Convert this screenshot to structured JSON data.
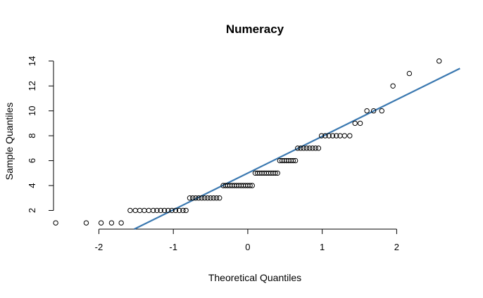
{
  "chart_data": {
    "type": "scatter",
    "title": "Numeracy",
    "xlabel": "Theoretical Quantiles",
    "ylabel": "Sample Quantiles",
    "xlim": [
      -2.6,
      2.8
    ],
    "ylim": [
      0.5,
      14.5
    ],
    "xticks": [
      -2,
      -1,
      0,
      1,
      2
    ],
    "xtick_labels": [
      "-2",
      "-1",
      "0",
      "1",
      "2"
    ],
    "yticks": [
      2,
      4,
      6,
      8,
      10,
      12,
      14
    ],
    "ytick_labels": [
      "2",
      "4",
      "6",
      "8",
      "10",
      "12",
      "14"
    ],
    "grid": false,
    "ref_line": {
      "intercept": 5.0,
      "slope": 2.95,
      "color": "#3a78b0"
    },
    "points": [
      {
        "y": 1,
        "x": [
          -2.58,
          -2.17,
          -1.97,
          -1.83,
          -1.7
        ]
      },
      {
        "y": 2,
        "x": [
          -1.58,
          -1.51,
          -1.45,
          -1.39,
          -1.33,
          -1.27,
          -1.22,
          -1.17,
          -1.12,
          -1.07,
          -1.02,
          -0.97,
          -0.92,
          -0.87,
          -0.83
        ]
      },
      {
        "y": 3,
        "x": [
          -0.78,
          -0.74,
          -0.7,
          -0.66,
          -0.62,
          -0.58,
          -0.54,
          -0.5,
          -0.46,
          -0.42,
          -0.38
        ]
      },
      {
        "y": 4,
        "x": [
          -0.33,
          -0.3,
          -0.27,
          -0.24,
          -0.21,
          -0.18,
          -0.15,
          -0.12,
          -0.09,
          -0.06,
          -0.03,
          0.0,
          0.03,
          0.06
        ]
      },
      {
        "y": 5,
        "x": [
          0.1,
          0.13,
          0.16,
          0.19,
          0.22,
          0.25,
          0.28,
          0.31,
          0.34,
          0.37,
          0.4
        ]
      },
      {
        "y": 6,
        "x": [
          0.43,
          0.46,
          0.49,
          0.52,
          0.55,
          0.58,
          0.61,
          0.64
        ]
      },
      {
        "y": 7,
        "x": [
          0.67,
          0.71,
          0.75,
          0.79,
          0.83,
          0.87,
          0.91,
          0.95
        ]
      },
      {
        "y": 8,
        "x": [
          0.99,
          1.04,
          1.09,
          1.14,
          1.19,
          1.24,
          1.3,
          1.37
        ]
      },
      {
        "y": 9,
        "x": [
          1.44,
          1.51
        ]
      },
      {
        "y": 10,
        "x": [
          1.6,
          1.69,
          1.8
        ]
      },
      {
        "y": 12,
        "x": [
          1.95
        ]
      },
      {
        "y": 13,
        "x": [
          2.17
        ]
      },
      {
        "y": 14,
        "x": [
          2.57
        ]
      }
    ]
  }
}
